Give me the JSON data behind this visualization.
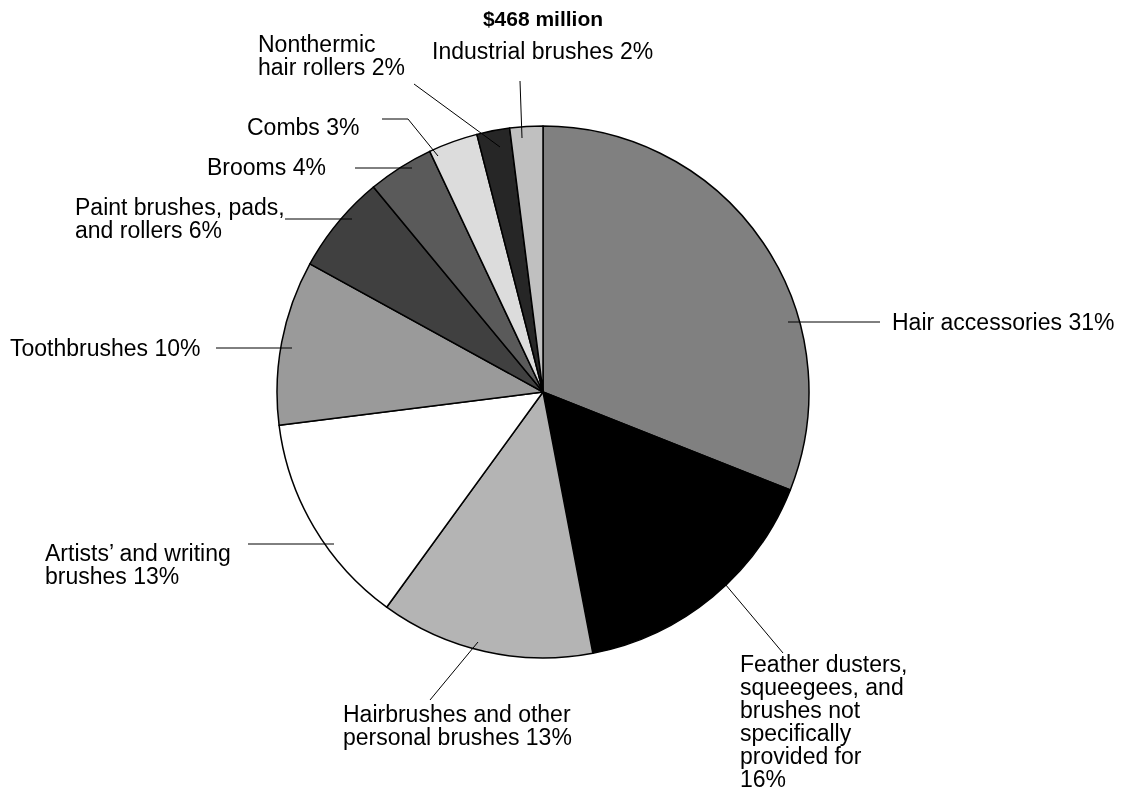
{
  "chart_data": {
    "type": "pie",
    "title": "$468 million",
    "categories": [
      "Hair accessories",
      "Feather dusters, squeegees, and brushes not specifically provided for",
      "Hairbrushes and other personal brushes",
      "Artists’ and writing brushes",
      "Toothbrushes",
      "Paint brushes, pads, and rollers",
      "Brooms",
      "Combs",
      "Nonthermic hair rollers",
      "Industrial brushes"
    ],
    "values": [
      31,
      16,
      13,
      13,
      10,
      6,
      4,
      3,
      2,
      2
    ],
    "value_labels": [
      "31%",
      "16%",
      "13%",
      "13%",
      "10%",
      "6%",
      "4%",
      "3%",
      "2%",
      "2%"
    ],
    "colors": [
      "#808080",
      "#000000",
      "#b4b4b4",
      "#ffffff",
      "#9a9a9a",
      "#404040",
      "#5a5a5a",
      "#dcdcdc",
      "#262626",
      "#c0c0c0"
    ]
  }
}
